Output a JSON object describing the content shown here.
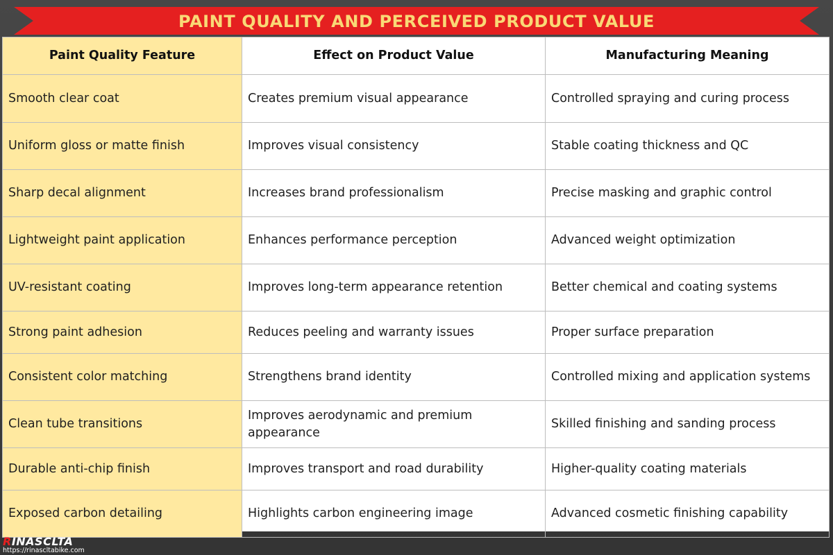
{
  "title": "PAINT QUALITY AND PERCEIVED PRODUCT VALUE",
  "colors": {
    "ribbon": "#e52020",
    "title_text": "#f9d976",
    "first_column": "#ffe9a0",
    "background": "#3e3e3e"
  },
  "table": {
    "headers": [
      "Paint Quality Feature",
      "Effect on Product Value",
      "Manufacturing Meaning"
    ],
    "rows": [
      [
        "Smooth clear coat",
        "Creates premium visual appearance",
        "Controlled spraying and curing process"
      ],
      [
        "Uniform gloss or matte finish",
        "Improves visual consistency",
        "Stable coating thickness and QC"
      ],
      [
        "Sharp decal alignment",
        "Increases brand professionalism",
        "Precise masking and graphic control"
      ],
      [
        "Lightweight paint application",
        "Enhances performance perception",
        "Advanced weight optimization"
      ],
      [
        "UV-resistant coating",
        "Improves long-term appearance retention",
        "Better chemical and coating systems"
      ],
      [
        "Strong paint adhesion",
        "Reduces peeling and warranty issues",
        "Proper surface preparation"
      ],
      [
        "Consistent color matching",
        "Strengthens brand identity",
        "Controlled mixing and application systems"
      ],
      [
        "Clean tube transitions",
        "Improves aerodynamic and premium appearance",
        "Skilled finishing and sanding process"
      ],
      [
        "Durable anti-chip finish",
        "Improves transport and road durability",
        "Higher-quality coating materials"
      ],
      [
        "Exposed carbon detailing",
        "Highlights carbon engineering image",
        "Advanced cosmetic finishing capability"
      ]
    ]
  },
  "footer": {
    "logo_mark": "R",
    "logo_rest": "INASCLTA",
    "url": "https://rinascltabike.com"
  }
}
